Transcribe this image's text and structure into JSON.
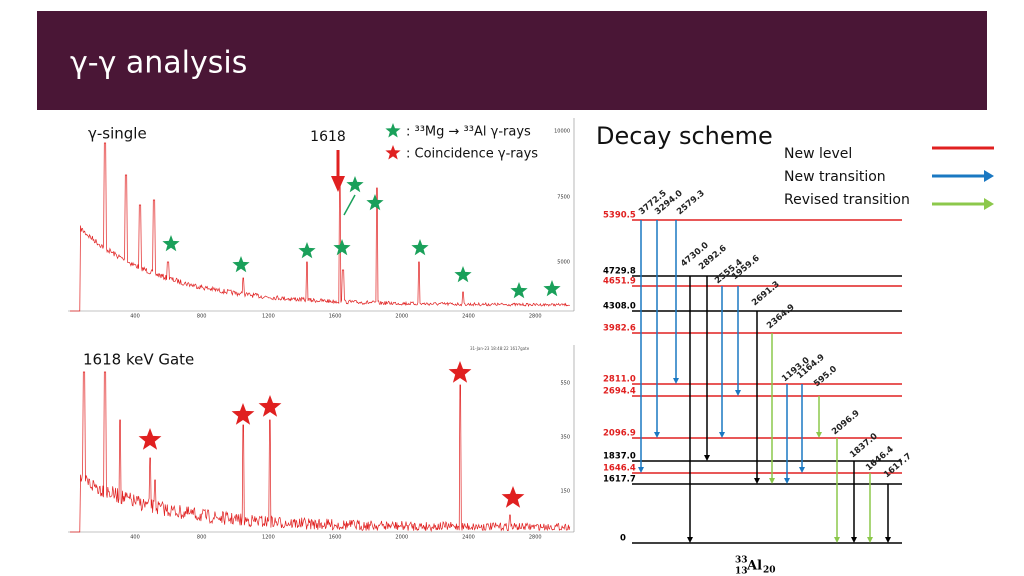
{
  "header": {
    "title": "γ-γ analysis"
  },
  "single_panel": {
    "label": "γ-single",
    "peak_label": "1618",
    "legend": [
      {
        "text": ": ³³Mg → ³³Al γ-rays",
        "color": "#1aa05a"
      },
      {
        "text": ": Coincidence γ-rays",
        "color": "#e02020"
      }
    ],
    "xticks": [
      "400",
      "800",
      "1200",
      "1600",
      "2000",
      "2400",
      "2800"
    ],
    "yticks": [
      "10000",
      "7500",
      "5000"
    ]
  },
  "gate_panel": {
    "label": "1618 keV Gate",
    "stamp": "31-Jan-23 18:48:22  1617gate",
    "xticks": [
      "400",
      "800",
      "1200",
      "1600",
      "2000",
      "2400",
      "2800"
    ],
    "yticks": [
      "550",
      "350",
      "150"
    ]
  },
  "scheme": {
    "title": "Decay scheme",
    "legend": [
      {
        "text": "New level",
        "color": "#e02020"
      },
      {
        "text": "New transition",
        "color": "#1a78c2"
      },
      {
        "text": "Revised transition",
        "color": "#8cc84b"
      }
    ],
    "levels": [
      {
        "energy": "5390.5",
        "color": "#e02020"
      },
      {
        "energy": "4729.8",
        "color": "#000"
      },
      {
        "energy": "4651.9",
        "color": "#e02020"
      },
      {
        "energy": "4308.0",
        "color": "#000"
      },
      {
        "energy": "3982.6",
        "color": "#e02020"
      },
      {
        "energy": "2811.0",
        "color": "#e02020"
      },
      {
        "energy": "2694.4",
        "color": "#e02020"
      },
      {
        "energy": "2096.9",
        "color": "#e02020"
      },
      {
        "energy": "1837.0",
        "color": "#000"
      },
      {
        "energy": "1646.4",
        "color": "#e02020"
      },
      {
        "energy": "1617.7",
        "color": "#000"
      },
      {
        "energy": "0",
        "color": "#000"
      }
    ],
    "transitions": [
      {
        "energy": "3772.5",
        "color": "#1a78c2"
      },
      {
        "energy": "3294.0",
        "color": "#1a78c2"
      },
      {
        "energy": "2579.3",
        "color": "#1a78c2"
      },
      {
        "energy": "4730.0",
        "color": "#000"
      },
      {
        "energy": "2892.6",
        "color": "#000"
      },
      {
        "energy": "2555.4",
        "color": "#1a78c2"
      },
      {
        "energy": "1959.6",
        "color": "#1a78c2"
      },
      {
        "energy": "2691.3",
        "color": "#000"
      },
      {
        "energy": "2364.9",
        "color": "#8cc84b"
      },
      {
        "energy": "1193.0",
        "color": "#1a78c2"
      },
      {
        "energy": "1164.9",
        "color": "#1a78c2"
      },
      {
        "energy": "595.0",
        "color": "#8cc84b"
      },
      {
        "energy": "2096.9",
        "color": "#8cc84b"
      },
      {
        "energy": "1837.0",
        "color": "#000"
      },
      {
        "energy": "1646.4",
        "color": "#8cc84b"
      },
      {
        "energy": "1617.7",
        "color": "#000"
      }
    ],
    "nucleus": {
      "mass": "33",
      "z": "13",
      "symbol": "Al",
      "n": "20"
    }
  }
}
